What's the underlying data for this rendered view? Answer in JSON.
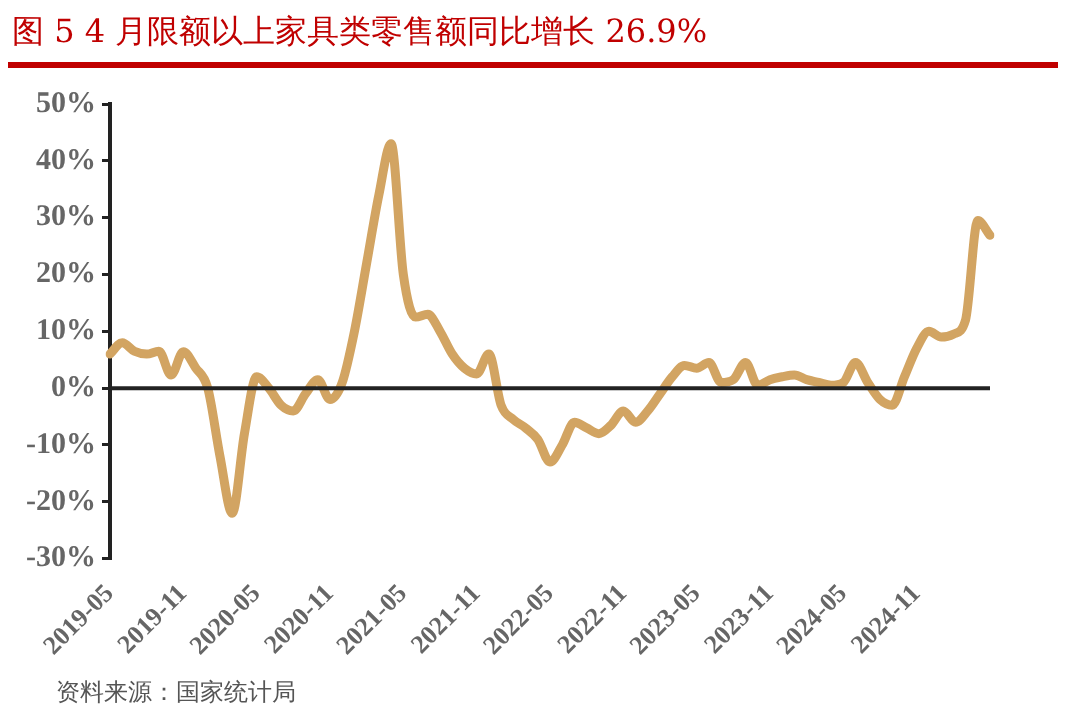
{
  "chart_data": {
    "type": "line",
    "title": "图 5 4 月限额以上家具类零售额同比增长 26.9%",
    "annotations": [
      "资料来源：国家统计局"
    ],
    "categories": [
      "2019-05",
      null,
      null,
      null,
      null,
      null,
      "2019-11",
      null,
      null,
      null,
      null,
      null,
      "2020-05",
      null,
      null,
      null,
      null,
      null,
      "2020-11",
      null,
      null,
      null,
      null,
      null,
      "2021-05",
      null,
      null,
      null,
      null,
      null,
      "2021-11",
      null,
      null,
      null,
      null,
      null,
      "2022-05",
      null,
      null,
      null,
      null,
      null,
      "2022-11",
      null,
      null,
      null,
      null,
      null,
      "2023-05",
      null,
      null,
      null,
      null,
      null,
      "2023-11",
      null,
      null,
      null,
      null,
      null,
      "2024-05",
      null,
      null,
      null,
      null,
      null,
      "2024-11",
      null,
      null,
      null,
      null,
      null,
      null
    ],
    "series": [
      {
        "color": "#d2a462",
        "values": [
          6,
          8,
          6.5,
          6,
          6.5,
          2.3,
          6.4,
          3.6,
          0,
          -12,
          -22,
          -8,
          2,
          0,
          -3,
          -4,
          -1,
          1.5,
          -2,
          1,
          10,
          22,
          34,
          43,
          20,
          12.5,
          13,
          10,
          6,
          3.5,
          2.5,
          6,
          -3,
          -5.5,
          -7,
          -9,
          -13,
          -10,
          -6,
          -7,
          -8,
          -6.5,
          -4,
          -6,
          -4,
          -1,
          2,
          4,
          3.5,
          4.5,
          1,
          1.5,
          4.5,
          0.5,
          1.5,
          2,
          2.3,
          1.5,
          1,
          0.5,
          1,
          4.5,
          1,
          -2,
          -3,
          2,
          7,
          10,
          9,
          9.5,
          12,
          29.5,
          26.9
        ]
      }
    ],
    "ylim": [
      -30,
      50
    ],
    "yticks": [
      {
        "value": -30,
        "label": "-30%"
      },
      {
        "value": -20,
        "label": "-20%"
      },
      {
        "value": -10,
        "label": "-10%"
      },
      {
        "value": 0,
        "label": "0%"
      },
      {
        "value": 10,
        "label": "10%"
      },
      {
        "value": 20,
        "label": "20%"
      },
      {
        "value": 30,
        "label": "30%"
      },
      {
        "value": 40,
        "label": "40%"
      },
      {
        "value": 50,
        "label": "50%"
      }
    ],
    "ref_lines": [
      {
        "axis": "y",
        "value": 0,
        "color": "#222222",
        "line_style": "solid"
      }
    ],
    "grid": false,
    "legend": false,
    "marker": "none",
    "line_style": "solid"
  }
}
